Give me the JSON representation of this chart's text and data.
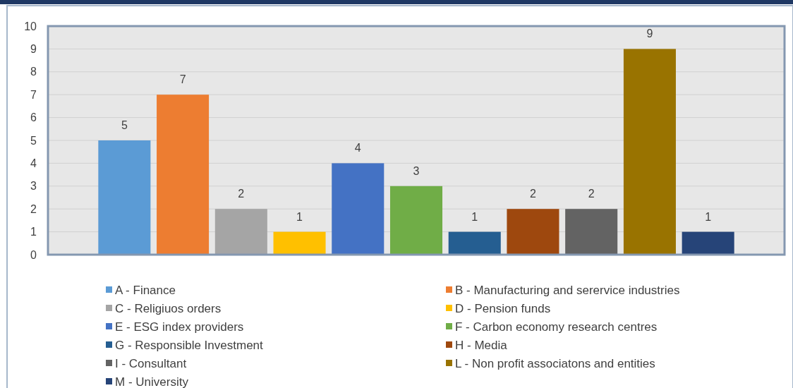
{
  "chart_data": {
    "type": "bar",
    "categories": [
      null
    ],
    "series": [
      {
        "name": "A - Finance",
        "color": "#5b9bd5",
        "values": [
          5
        ]
      },
      {
        "name": "B - Manufacturing and serervice industries",
        "color": "#ed7d31",
        "values": [
          7
        ]
      },
      {
        "name": "C - Religiuos orders",
        "color": "#a5a5a5",
        "values": [
          2
        ]
      },
      {
        "name": "D - Pension funds",
        "color": "#ffc000",
        "values": [
          1
        ]
      },
      {
        "name": "E - ESG index providers",
        "color": "#4472c4",
        "values": [
          4
        ]
      },
      {
        "name": "F - Carbon  economy research centres",
        "color": "#70ad47",
        "values": [
          3
        ]
      },
      {
        "name": "G - Responsible Investment",
        "color": "#255e91",
        "values": [
          1
        ]
      },
      {
        "name": "H - Media",
        "color": "#9e480e",
        "values": [
          2
        ]
      },
      {
        "name": "I -  Consultant",
        "color": "#636363",
        "values": [
          2
        ]
      },
      {
        "name": "L - Non profit associatons and entities",
        "color": "#997300",
        "values": [
          9
        ]
      },
      {
        "name": "M - University",
        "color": "#264478",
        "values": [
          1
        ]
      }
    ],
    "ylim": [
      0,
      10
    ],
    "yticks": [
      0,
      1,
      2,
      3,
      4,
      5,
      6,
      7,
      8,
      9,
      10
    ],
    "grid": "y",
    "data_labels": true,
    "legend": "bottom"
  }
}
